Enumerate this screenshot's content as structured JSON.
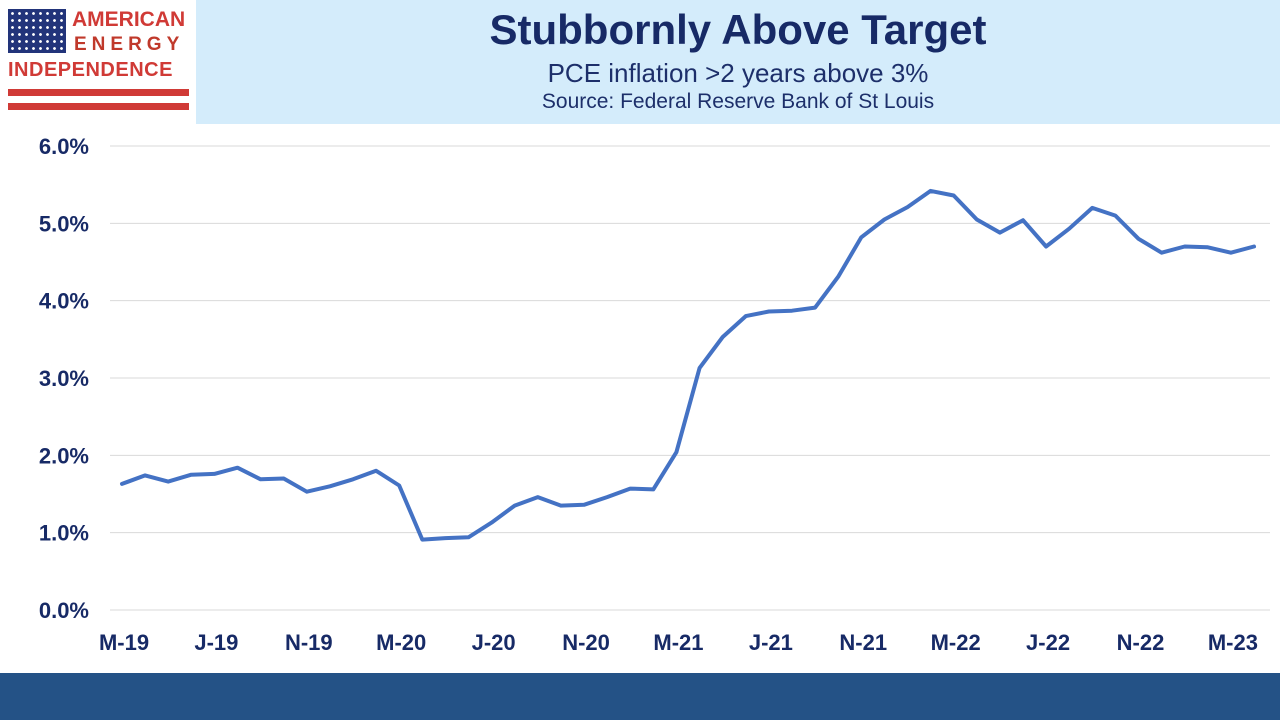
{
  "header": {
    "title": "Stubbornly Above Target",
    "subtitle": "PCE inflation >2 years above 3%",
    "source": "Source: Federal Reserve Bank of St Louis"
  },
  "logo": {
    "line1": "AMERICAN",
    "line2": "ENERGY",
    "line3": "INDEPENDENCE"
  },
  "colors": {
    "header_bg": "#d4ecfb",
    "title": "#172a66",
    "line": "#4472c4",
    "footer": "#245286",
    "logo_red": "#d03a36",
    "logo_blue": "#22347a"
  },
  "chart_data": {
    "type": "line",
    "title": "",
    "xlabel": "",
    "ylabel": "",
    "ylim": [
      0,
      6
    ],
    "y_ticks": [
      "0.0%",
      "1.0%",
      "2.0%",
      "3.0%",
      "4.0%",
      "5.0%",
      "6.0%"
    ],
    "x_tick_labels": [
      "M-19",
      "J-19",
      "N-19",
      "M-20",
      "J-20",
      "N-20",
      "M-21",
      "J-21",
      "N-21",
      "M-22",
      "J-22",
      "N-22",
      "M-23"
    ],
    "x_tick_every": 4,
    "grid": true,
    "legend": "none",
    "series": [
      {
        "values": [
          1.63,
          1.74,
          1.66,
          1.75,
          1.76,
          1.84,
          1.69,
          1.7,
          1.53,
          1.6,
          1.69,
          1.8,
          1.61,
          0.91,
          0.93,
          0.94,
          1.13,
          1.35,
          1.46,
          1.35,
          1.36,
          1.46,
          1.57,
          1.56,
          2.04,
          3.13,
          3.53,
          3.8,
          3.86,
          3.87,
          3.91,
          4.31,
          4.82,
          5.05,
          5.21,
          5.42,
          5.36,
          5.05,
          4.88,
          5.04,
          4.7,
          4.93,
          5.2,
          5.1,
          4.8,
          4.62,
          4.7,
          4.69,
          4.62,
          4.7
        ]
      }
    ]
  }
}
